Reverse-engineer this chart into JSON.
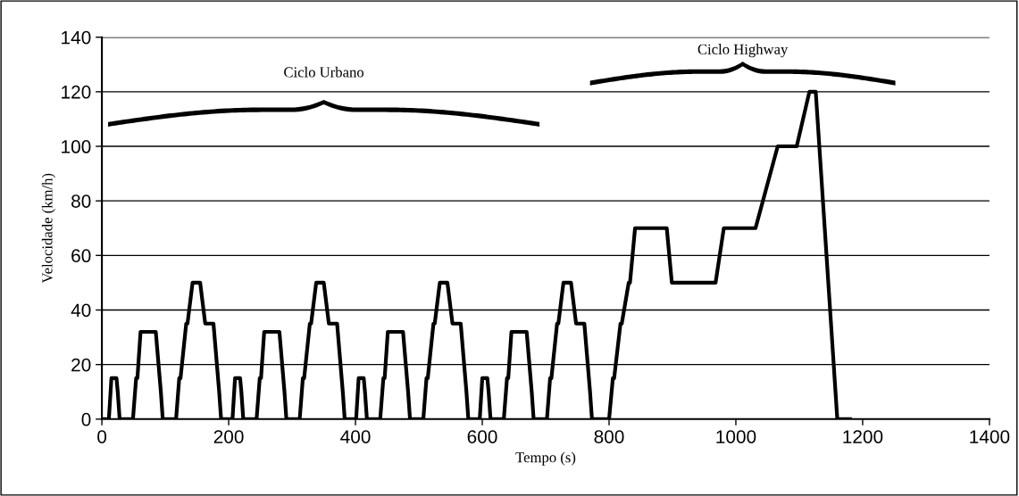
{
  "chart_data": {
    "type": "line",
    "xlabel": "Tempo (s)",
    "ylabel": "Velocidade (km/h)",
    "xlim": [
      0,
      1400
    ],
    "xticks": [
      0,
      200,
      400,
      600,
      800,
      1000,
      1200,
      1400
    ],
    "ylim": [
      0,
      140
    ],
    "yticks": [
      0,
      20,
      40,
      60,
      80,
      100,
      120,
      140
    ],
    "grid": "y",
    "marker": "none",
    "line_style": "solid",
    "annotations": [
      "Ciclo Urbano",
      "Ciclo Highway"
    ],
    "series": [
      {
        "color": "#000000",
        "x": [
          0,
          11,
          15,
          23,
          25,
          28,
          49,
          54,
          56,
          61,
          85,
          93,
          96,
          117,
          122,
          124,
          133,
          135,
          143,
          155,
          163,
          176,
          185,
          188,
          195,
          206,
          210,
          218,
          220,
          223,
          244,
          249,
          251,
          256,
          280,
          288,
          291,
          312,
          317,
          319,
          328,
          330,
          338,
          350,
          358,
          371,
          380,
          383,
          390,
          401,
          405,
          413,
          415,
          418,
          439,
          444,
          446,
          451,
          475,
          483,
          486,
          507,
          512,
          514,
          523,
          525,
          533,
          545,
          553,
          566,
          575,
          578,
          585,
          596,
          600,
          608,
          610,
          613,
          634,
          639,
          641,
          646,
          670,
          678,
          681,
          702,
          707,
          709,
          718,
          720,
          728,
          740,
          748,
          761,
          770,
          773,
          800,
          806,
          808,
          818,
          820,
          831,
          833,
          841,
          891,
          899,
          968,
          981,
          1031,
          1066,
          1096,
          1116,
          1126,
          1160,
          1180
        ],
        "values": [
          0,
          0,
          15,
          15,
          10,
          0,
          0,
          15,
          15,
          32,
          32,
          10,
          0,
          0,
          15,
          15,
          35,
          35,
          50,
          50,
          35,
          35,
          10,
          0,
          0,
          0,
          15,
          15,
          10,
          0,
          0,
          15,
          15,
          32,
          32,
          10,
          0,
          0,
          15,
          15,
          35,
          35,
          50,
          50,
          35,
          35,
          10,
          0,
          0,
          0,
          15,
          15,
          10,
          0,
          0,
          15,
          15,
          32,
          32,
          10,
          0,
          0,
          15,
          15,
          35,
          35,
          50,
          50,
          35,
          35,
          10,
          0,
          0,
          0,
          15,
          15,
          10,
          0,
          0,
          15,
          15,
          32,
          32,
          10,
          0,
          0,
          15,
          15,
          35,
          35,
          50,
          50,
          35,
          35,
          10,
          0,
          0,
          15,
          15,
          35,
          35,
          50,
          50,
          70,
          70,
          50,
          50,
          70,
          70,
          100,
          100,
          120,
          120,
          0,
          0
        ]
      }
    ]
  }
}
